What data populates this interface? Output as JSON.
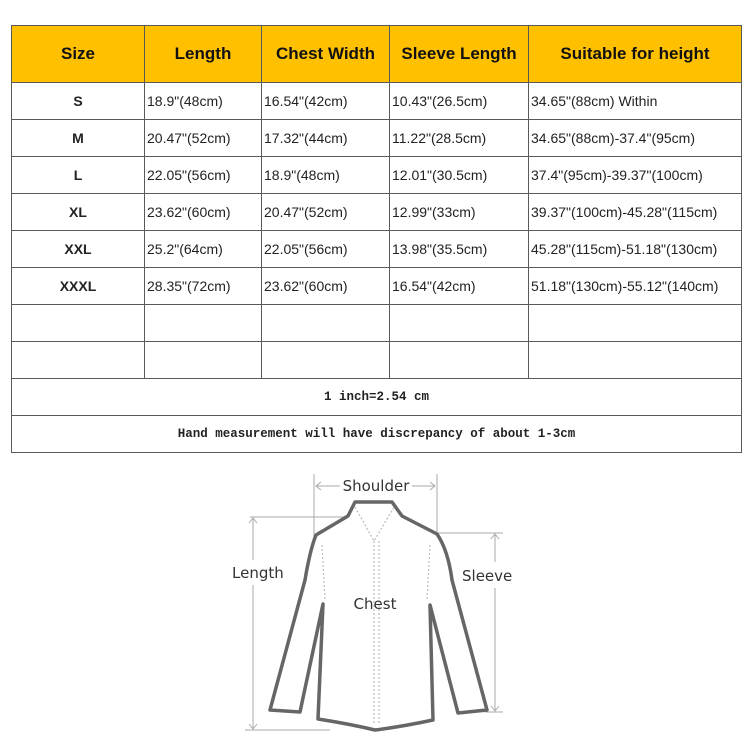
{
  "header_color": "#FFC000",
  "columns": [
    "Size",
    "Length",
    "Chest Width",
    "Sleeve Length",
    "Suitable for height"
  ],
  "rows": [
    [
      "S",
      "18.9\"(48cm)",
      "16.54\"(42cm)",
      "10.43\"(26.5cm)",
      "34.65\"(88cm) Within"
    ],
    [
      "M",
      "20.47\"(52cm)",
      "17.32\"(44cm)",
      "11.22\"(28.5cm)",
      "34.65\"(88cm)-37.4\"(95cm)"
    ],
    [
      "L",
      "22.05\"(56cm)",
      "18.9\"(48cm)",
      "12.01\"(30.5cm)",
      "37.4\"(95cm)-39.37\"(100cm)"
    ],
    [
      "XL",
      "23.62\"(60cm)",
      "20.47\"(52cm)",
      "12.99\"(33cm)",
      "39.37\"(100cm)-45.28\"(115cm)"
    ],
    [
      "XXL",
      "25.2\"(64cm)",
      "22.05\"(56cm)",
      "13.98\"(35.5cm)",
      "45.28\"(115cm)-51.18\"(130cm)"
    ],
    [
      "XXXL",
      "28.35\"(72cm)",
      "23.62\"(60cm)",
      "16.54\"(42cm)",
      "51.18\"(130cm)-55.12\"(140cm)"
    ],
    [
      "",
      "",
      "",
      "",
      ""
    ],
    [
      "",
      "",
      "",
      "",
      ""
    ]
  ],
  "notes": [
    "1 inch=2.54 cm",
    "Hand measurement will have discrepancy of about 1-3cm"
  ],
  "diagram": {
    "shoulder": "Shoulder",
    "length": "Length",
    "chest": "Chest",
    "sleeve": "Sleeve"
  }
}
